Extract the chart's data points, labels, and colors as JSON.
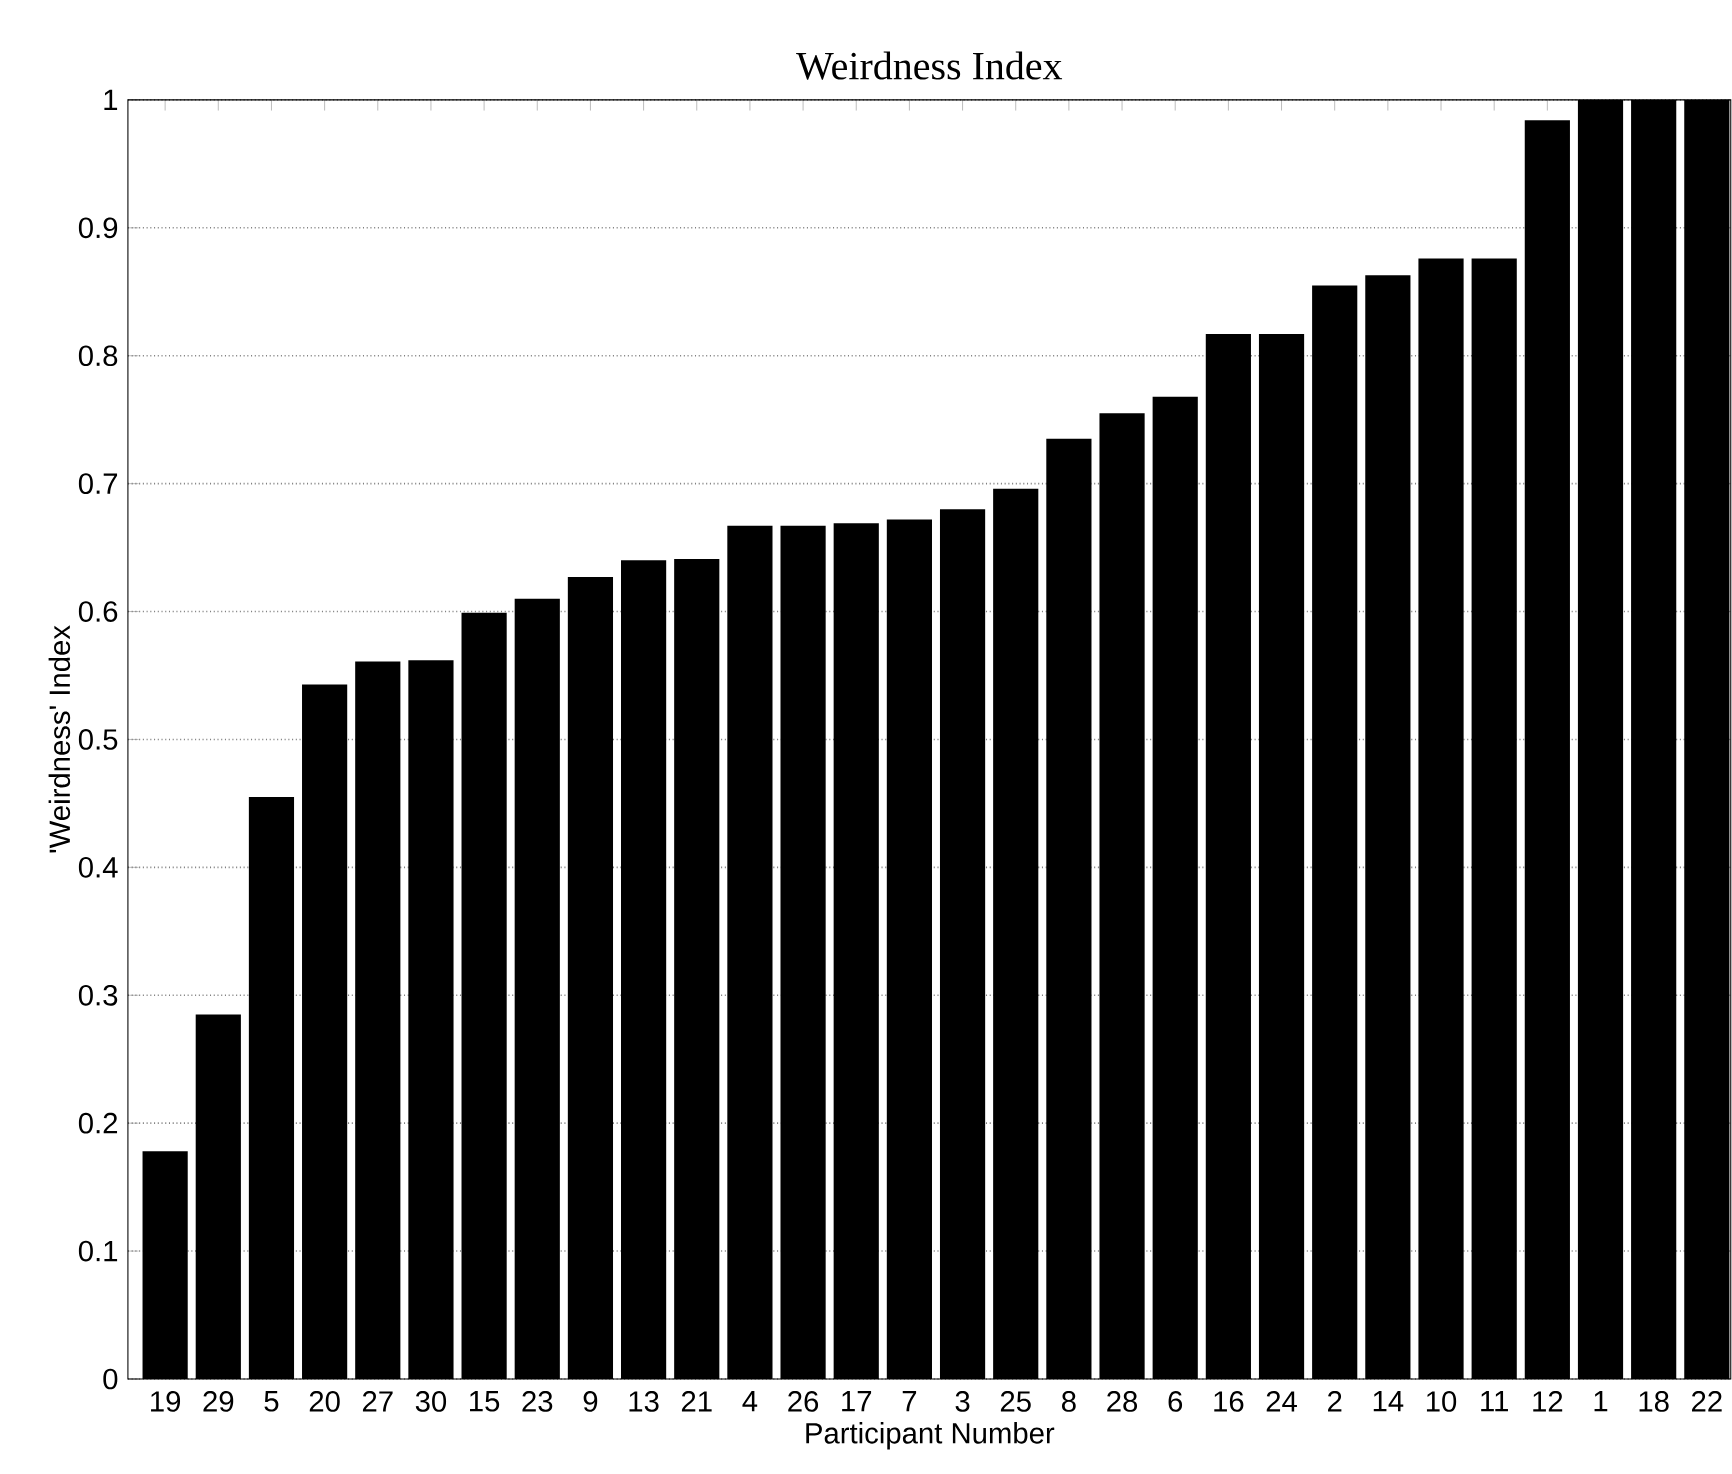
{
  "chart_data": {
    "type": "bar",
    "title": "Weirdness Index",
    "xlabel": "Participant Number",
    "ylabel": "'Weirdness' Index",
    "categories": [
      "19",
      "29",
      "5",
      "20",
      "27",
      "30",
      "15",
      "23",
      "9",
      "13",
      "21",
      "4",
      "26",
      "17",
      "7",
      "3",
      "25",
      "8",
      "28",
      "6",
      "16",
      "24",
      "2",
      "14",
      "10",
      "11",
      "12",
      "1",
      "18",
      "22"
    ],
    "values": [
      0.178,
      0.285,
      0.455,
      0.543,
      0.561,
      0.562,
      0.599,
      0.61,
      0.627,
      0.64,
      0.641,
      0.667,
      0.667,
      0.669,
      0.672,
      0.68,
      0.696,
      0.735,
      0.755,
      0.768,
      0.817,
      0.817,
      0.855,
      0.863,
      0.876,
      0.876,
      0.984,
      1,
      1,
      1
    ],
    "color": "#000000",
    "ylim": [
      0,
      1
    ],
    "yticks": [
      0,
      0.1,
      0.2,
      0.3,
      0.4,
      0.5,
      0.6,
      0.7,
      0.8,
      0.9,
      1
    ],
    "grid": "y"
  }
}
